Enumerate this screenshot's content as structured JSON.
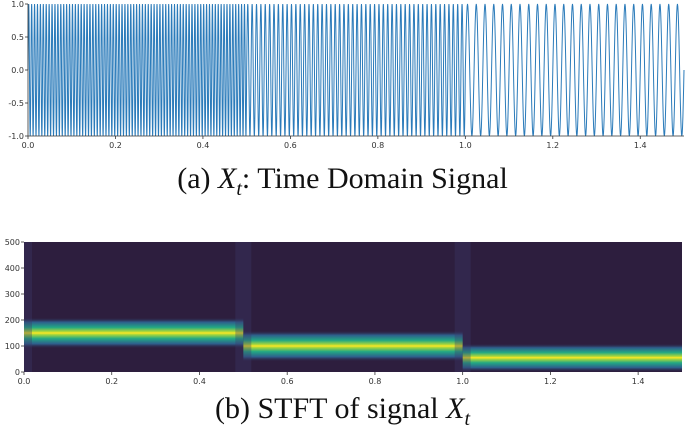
{
  "captions": {
    "a": {
      "prefix": "(a) ",
      "var": "X",
      "sub": "t",
      "suffix": ": Time Domain Signal"
    },
    "b": {
      "prefix": "(b) STFT of signal ",
      "var": "X",
      "sub": "t",
      "suffix": ""
    }
  },
  "colors": {
    "line": "#2b7bba",
    "spec_bg": "#2d1e3e",
    "axis": "#333333"
  },
  "chart_data": [
    {
      "type": "line",
      "name": "time-domain-signal",
      "xlim": [
        0.0,
        1.5
      ],
      "ylim": [
        -1.0,
        1.0
      ],
      "xticks": [
        "0.0",
        "0.2",
        "0.4",
        "0.6",
        "0.8",
        "1.0",
        "1.2",
        "1.4"
      ],
      "yticks": [
        "1.0",
        "0.5",
        "0.0",
        "-0.5",
        "-1.0"
      ],
      "segments": [
        {
          "t_start": 0.0,
          "t_end": 0.5,
          "freq_hz": 150
        },
        {
          "t_start": 0.5,
          "t_end": 1.0,
          "freq_hz": 100
        },
        {
          "t_start": 1.0,
          "t_end": 1.5,
          "freq_hz": 50
        }
      ],
      "amplitude": 1.0
    },
    {
      "type": "heatmap",
      "name": "stft-spectrogram",
      "xlim": [
        0.0,
        1.5
      ],
      "ylim": [
        0,
        500
      ],
      "xticks": [
        "0.0",
        "0.2",
        "0.4",
        "0.6",
        "0.8",
        "1.0",
        "1.2",
        "1.4"
      ],
      "yticks": [
        "500",
        "400",
        "300",
        "200",
        "100",
        "0"
      ],
      "bands": [
        {
          "t_start": 0.0,
          "t_end": 0.5,
          "freq_hz": 150
        },
        {
          "t_start": 0.5,
          "t_end": 1.0,
          "freq_hz": 100
        },
        {
          "t_start": 1.0,
          "t_end": 1.5,
          "freq_hz": 50
        }
      ]
    }
  ]
}
